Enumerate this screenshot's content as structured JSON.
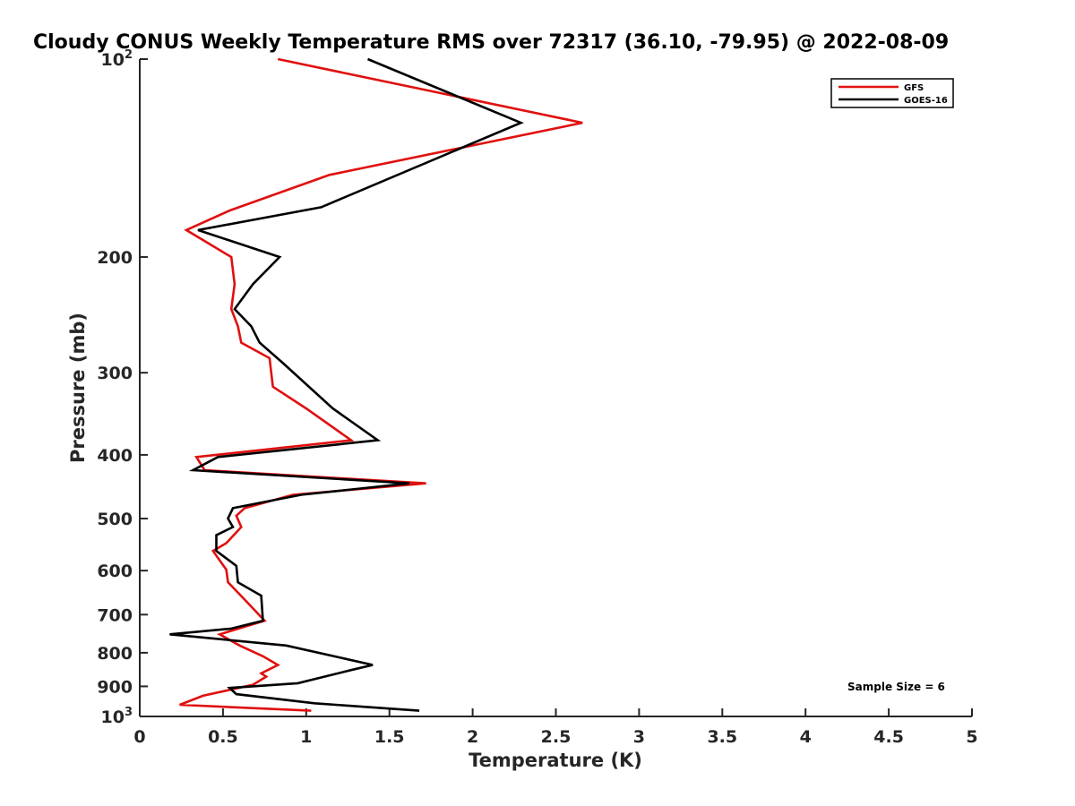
{
  "chart_data": {
    "type": "line",
    "title": "Cloudy CONUS Weekly Temperature RMS over 72317 (36.10, -79.95) @ 2022-08-09",
    "xlabel": "Temperature (K)",
    "ylabel": "Pressure (mb)",
    "xlim": [
      0,
      5
    ],
    "ylim": [
      1000,
      100
    ],
    "yscale": "log",
    "y_reversed": true,
    "grid": false,
    "legend_position": "top-right",
    "x_ticks": [
      "0",
      "0.5",
      "1",
      "1.5",
      "2",
      "2.5",
      "3",
      "3.5",
      "4",
      "4.5",
      "5"
    ],
    "y_ticks": [
      {
        "value": 100,
        "base": "10",
        "exp": "2"
      },
      {
        "value": 200,
        "label": "200"
      },
      {
        "value": 300,
        "label": "300"
      },
      {
        "value": 400,
        "label": "400"
      },
      {
        "value": 500,
        "label": "500"
      },
      {
        "value": 600,
        "label": "600"
      },
      {
        "value": 700,
        "label": "700"
      },
      {
        "value": 800,
        "label": "800"
      },
      {
        "value": 900,
        "label": "900"
      },
      {
        "value": 1000,
        "base": "10",
        "exp": "3"
      }
    ],
    "annotation": "Sample Size = 6",
    "series": [
      {
        "name": "GFS",
        "color": "#e0100f",
        "points": [
          [
            0.83,
            100
          ],
          [
            2.66,
            125
          ],
          [
            1.14,
            150
          ],
          [
            0.54,
            170
          ],
          [
            0.28,
            182
          ],
          [
            0.55,
            200
          ],
          [
            0.57,
            220
          ],
          [
            0.55,
            240
          ],
          [
            0.59,
            255
          ],
          [
            0.61,
            270
          ],
          [
            0.78,
            285
          ],
          [
            0.8,
            315
          ],
          [
            1.0,
            340
          ],
          [
            1.27,
            380
          ],
          [
            0.34,
            403
          ],
          [
            0.39,
            422
          ],
          [
            1.72,
            442
          ],
          [
            0.92,
            460
          ],
          [
            0.63,
            482
          ],
          [
            0.58,
            495
          ],
          [
            0.61,
            515
          ],
          [
            0.52,
            545
          ],
          [
            0.44,
            560
          ],
          [
            0.52,
            598
          ],
          [
            0.53,
            625
          ],
          [
            0.62,
            660
          ],
          [
            0.75,
            715
          ],
          [
            0.48,
            750
          ],
          [
            0.6,
            780
          ],
          [
            0.74,
            810
          ],
          [
            0.83,
            835
          ],
          [
            0.73,
            860
          ],
          [
            0.76,
            870
          ],
          [
            0.68,
            895
          ],
          [
            0.38,
            930
          ],
          [
            0.24,
            960
          ],
          [
            1.03,
            980
          ]
        ]
      },
      {
        "name": "GOES-16",
        "color": "#000000",
        "points": [
          [
            1.37,
            100
          ],
          [
            2.29,
            125
          ],
          [
            1.09,
            168
          ],
          [
            0.35,
            182
          ],
          [
            0.84,
            200
          ],
          [
            0.68,
            220
          ],
          [
            0.57,
            240
          ],
          [
            0.67,
            255
          ],
          [
            0.72,
            270
          ],
          [
            0.86,
            290
          ],
          [
            1.16,
            340
          ],
          [
            1.43,
            380
          ],
          [
            0.47,
            403
          ],
          [
            0.32,
            422
          ],
          [
            1.62,
            442
          ],
          [
            0.97,
            460
          ],
          [
            0.56,
            482
          ],
          [
            0.53,
            500
          ],
          [
            0.56,
            515
          ],
          [
            0.46,
            530
          ],
          [
            0.46,
            560
          ],
          [
            0.58,
            590
          ],
          [
            0.59,
            625
          ],
          [
            0.73,
            655
          ],
          [
            0.74,
            715
          ],
          [
            0.55,
            735
          ],
          [
            0.18,
            750
          ],
          [
            0.88,
            780
          ],
          [
            1.4,
            835
          ],
          [
            1.27,
            850
          ],
          [
            0.95,
            890
          ],
          [
            0.54,
            905
          ],
          [
            0.58,
            925
          ],
          [
            1.05,
            955
          ],
          [
            1.68,
            980
          ]
        ]
      }
    ]
  }
}
